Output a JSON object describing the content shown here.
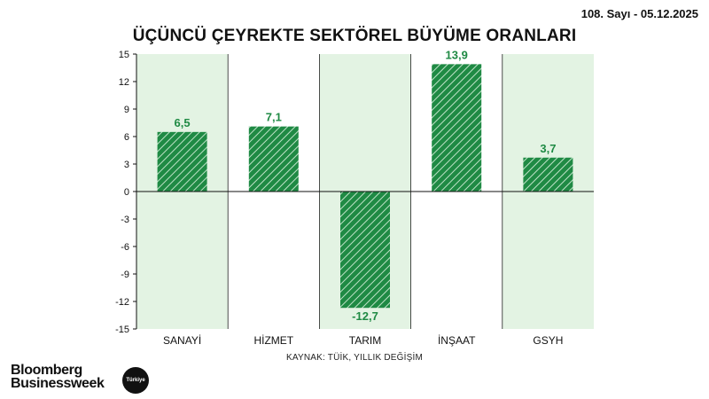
{
  "header": {
    "issue": "108. Sayı - 05.12.2025"
  },
  "chart_data": {
    "type": "bar",
    "title": "ÜÇÜNCÜ ÇEYREKTE SEKTÖREL BÜYÜME ORANLARI",
    "categories": [
      "SANAYİ",
      "HİZMET",
      "TARIM",
      "İNŞAAT",
      "GSYH"
    ],
    "values": [
      6.5,
      7.1,
      -12.7,
      13.9,
      3.7
    ],
    "value_labels": [
      "6,5",
      "7,1",
      "-12,7",
      "13,9",
      "3,7"
    ],
    "ylim": [
      -15,
      15
    ],
    "yticks": [
      15,
      12,
      9,
      6,
      3,
      0,
      -3,
      -6,
      -9,
      -12,
      -15
    ],
    "xlabel": "",
    "ylabel": "",
    "bar_color": "#1f8a44",
    "band_color": "#e3f3e3",
    "label_color": "#1f8a44"
  },
  "footer": {
    "source": "KAYNAK: TÜİK, YILLIK DEĞİŞİM",
    "logo_line1": "Bloomberg",
    "logo_line2": "Businessweek",
    "logo_badge": "Türkiye"
  }
}
